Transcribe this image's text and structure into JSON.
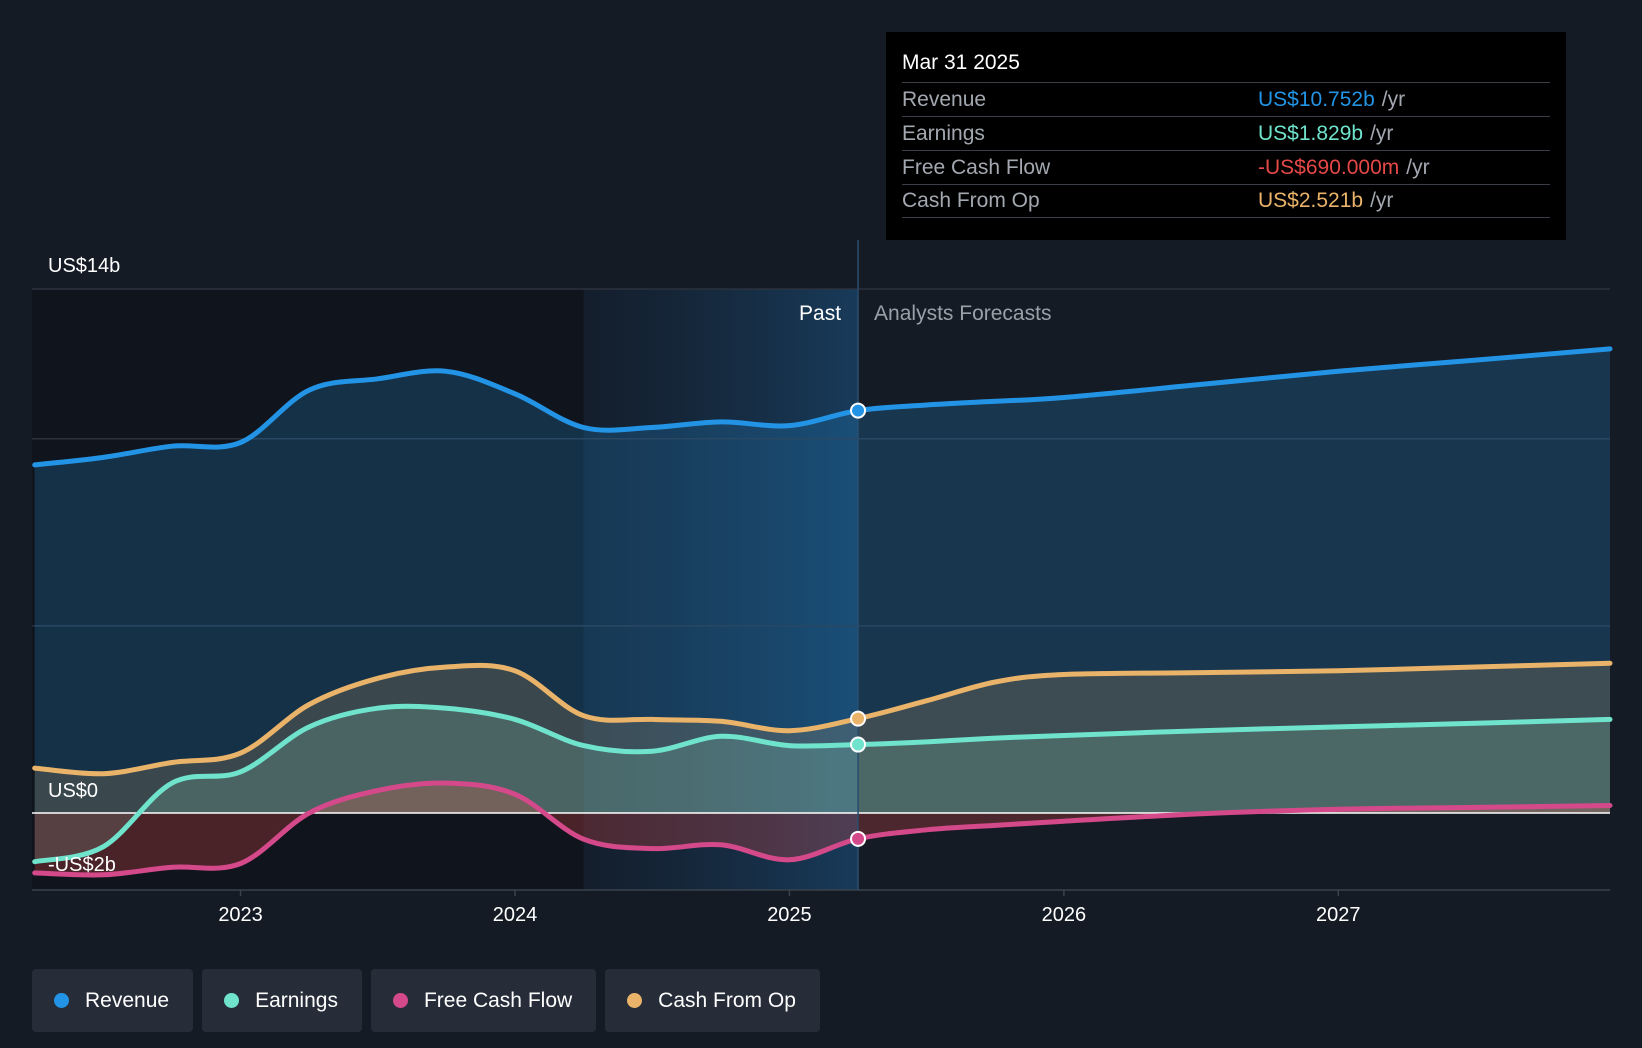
{
  "tooltip": {
    "date": "Mar 31 2025",
    "rows": [
      {
        "label": "Revenue",
        "value": "US$10.752b",
        "unit": "/yr",
        "color": "#2394e5"
      },
      {
        "label": "Earnings",
        "value": "US$1.829b",
        "unit": "/yr",
        "color": "#6fe3cc"
      },
      {
        "label": "Free Cash Flow",
        "value": "-US$690.000m",
        "unit": "/yr",
        "color": "#e64848"
      },
      {
        "label": "Cash From Op",
        "value": "US$2.521b",
        "unit": "/yr",
        "color": "#eab36a"
      }
    ]
  },
  "legend": [
    {
      "label": "Revenue",
      "color": "#2394e5"
    },
    {
      "label": "Earnings",
      "color": "#6fe3cc"
    },
    {
      "label": "Free Cash Flow",
      "color": "#d4498a"
    },
    {
      "label": "Cash From Op",
      "color": "#eab36a"
    }
  ],
  "chart_data": {
    "type": "area",
    "y_labels": [
      "US$14b",
      "US$0",
      "-US$2b"
    ],
    "ylim": [
      -2,
      14
    ],
    "x_ticks": [
      2023,
      2024,
      2025,
      2026,
      2027
    ],
    "x_tick_labels": [
      "2023",
      "2024",
      "2025",
      "2026",
      "2027"
    ],
    "xlim": [
      2022.24,
      2027.99
    ],
    "past_label": "Past",
    "forecast_label": "Analysts Forecasts",
    "forecast_start": 2025.25,
    "highlight_start": 2024.25,
    "series": [
      {
        "name": "Revenue",
        "color": "#2394e5",
        "x": [
          2022.25,
          2022.5,
          2022.75,
          2023.0,
          2023.25,
          2023.5,
          2023.75,
          2024.0,
          2024.25,
          2024.5,
          2024.75,
          2025.0,
          2025.25,
          2025.5,
          2025.75,
          2026.0,
          2026.5,
          2027.0,
          2027.5,
          2027.99
        ],
        "y": [
          9.3,
          9.5,
          9.8,
          9.9,
          11.3,
          11.6,
          11.8,
          11.2,
          10.3,
          10.3,
          10.45,
          10.35,
          10.752,
          10.9,
          11.0,
          11.1,
          11.45,
          11.8,
          12.1,
          12.4
        ]
      },
      {
        "name": "Earnings",
        "color": "#6fe3cc",
        "x": [
          2022.25,
          2022.5,
          2022.75,
          2023.0,
          2023.25,
          2023.5,
          2023.75,
          2024.0,
          2024.25,
          2024.5,
          2024.75,
          2025.0,
          2025.25,
          2025.5,
          2025.75,
          2026.0,
          2026.5,
          2027.0,
          2027.5,
          2027.99
        ],
        "y": [
          -1.3,
          -0.9,
          0.8,
          1.1,
          2.3,
          2.8,
          2.8,
          2.5,
          1.8,
          1.65,
          2.05,
          1.8,
          1.829,
          1.9,
          2.0,
          2.07,
          2.2,
          2.3,
          2.4,
          2.5
        ]
      },
      {
        "name": "Free Cash Flow",
        "color": "#d4498a",
        "x": [
          2022.25,
          2022.5,
          2022.75,
          2023.0,
          2023.25,
          2023.5,
          2023.75,
          2024.0,
          2024.25,
          2024.5,
          2024.75,
          2025.0,
          2025.25,
          2025.5,
          2025.75,
          2026.0,
          2026.5,
          2027.0,
          2027.5,
          2027.99
        ],
        "y": [
          -1.6,
          -1.65,
          -1.45,
          -1.35,
          0.0,
          0.6,
          0.8,
          0.5,
          -0.7,
          -0.95,
          -0.85,
          -1.25,
          -0.69,
          -0.45,
          -0.33,
          -0.22,
          -0.02,
          0.1,
          0.15,
          0.2
        ]
      },
      {
        "name": "Cash From Op",
        "color": "#eab36a",
        "x": [
          2022.25,
          2022.5,
          2022.75,
          2023.0,
          2023.25,
          2023.5,
          2023.75,
          2024.0,
          2024.25,
          2024.5,
          2024.75,
          2025.0,
          2025.25,
          2025.5,
          2025.75,
          2026.0,
          2026.5,
          2027.0,
          2027.5,
          2027.99
        ],
        "y": [
          1.2,
          1.05,
          1.35,
          1.6,
          2.9,
          3.6,
          3.9,
          3.8,
          2.6,
          2.5,
          2.45,
          2.2,
          2.521,
          3.0,
          3.5,
          3.7,
          3.75,
          3.8,
          3.9,
          4.0
        ]
      }
    ],
    "highlight_points": [
      {
        "series": "Revenue",
        "x": 2025.25,
        "y": 10.752
      },
      {
        "series": "Earnings",
        "x": 2025.25,
        "y": 1.829
      },
      {
        "series": "Free Cash Flow",
        "x": 2025.25,
        "y": -0.69
      },
      {
        "series": "Cash From Op",
        "x": 2025.25,
        "y": 2.521
      }
    ]
  }
}
